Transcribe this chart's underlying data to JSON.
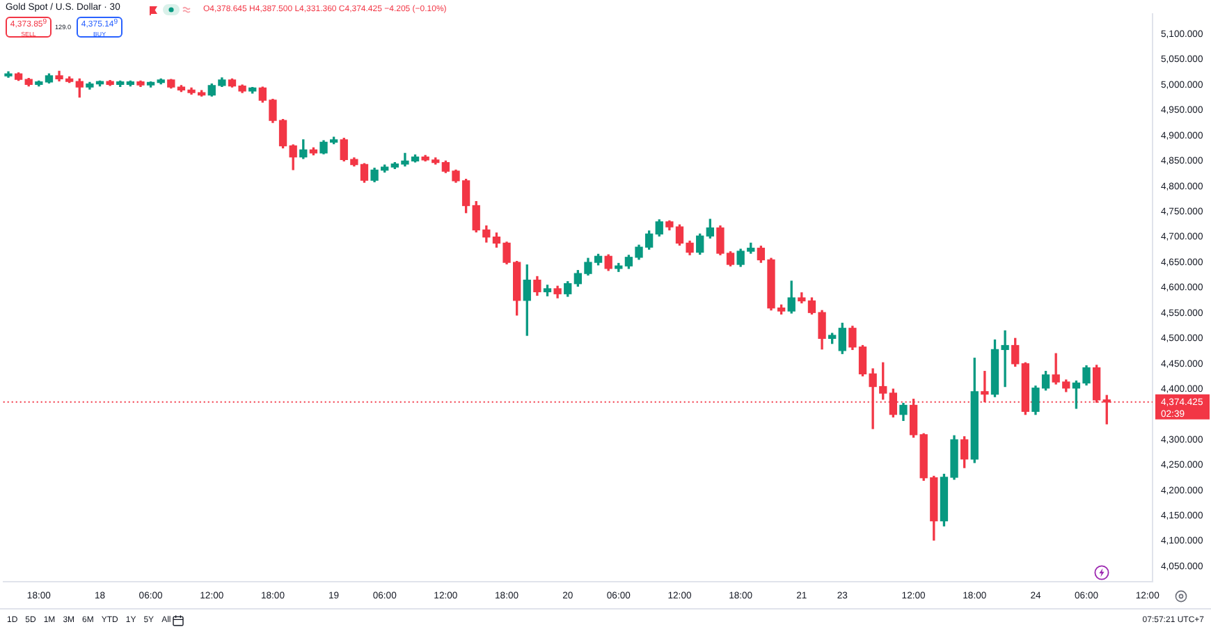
{
  "chart_data": {
    "type": "candlestick",
    "title": "Gold Spot / U.S. Dollar · 30",
    "categories": [
      null,
      null,
      null,
      "18:00",
      null,
      null,
      null,
      null,
      null,
      "18",
      null,
      null,
      null,
      null,
      "06:00",
      null,
      null,
      null,
      null,
      null,
      "12:00",
      null,
      null,
      null,
      null,
      null,
      "18:00",
      null,
      null,
      null,
      null,
      null,
      "19",
      null,
      null,
      null,
      null,
      "06:00",
      null,
      null,
      null,
      null,
      null,
      "12:00",
      null,
      null,
      null,
      null,
      null,
      "18:00",
      null,
      null,
      null,
      null,
      null,
      "20",
      null,
      null,
      null,
      null,
      "06:00",
      null,
      null,
      null,
      null,
      null,
      "12:00",
      null,
      null,
      null,
      null,
      null,
      "18:00",
      null,
      null,
      null,
      null,
      null,
      "21",
      null,
      null,
      null,
      "23",
      null,
      null,
      null,
      null,
      null,
      null,
      "12:00",
      null,
      null,
      null,
      null,
      null,
      "18:00",
      null,
      null,
      null,
      null,
      null,
      "24",
      null,
      null,
      null,
      null,
      "06:00",
      null,
      null,
      null,
      null,
      null,
      "12:00"
    ],
    "ohlc": [
      [
        5018,
        5026,
        5015,
        5022
      ],
      [
        5022,
        5024,
        5009,
        5011
      ],
      [
        5011,
        5013,
        4998,
        5001
      ],
      [
        5001,
        5008,
        4998,
        5006
      ],
      [
        5006,
        5022,
        5004,
        5018
      ],
      [
        5018,
        5027,
        5008,
        5012
      ],
      [
        5012,
        5016,
        5005,
        5007
      ],
      [
        5007,
        5012,
        4976,
        4996
      ],
      [
        4996,
        5005,
        4992,
        5002
      ],
      [
        5002,
        5008,
        4998,
        5007
      ],
      [
        5007,
        5009,
        4999,
        5001
      ],
      [
        5001,
        5008,
        4997,
        5006
      ],
      [
        5001,
        5008,
        4998,
        5006
      ],
      [
        5006,
        5008,
        4997,
        5000
      ],
      [
        5000,
        5006,
        4996,
        5005
      ],
      [
        5005,
        5012,
        5002,
        5010
      ],
      [
        5010,
        5011,
        4994,
        4996
      ],
      [
        4996,
        4999,
        4987,
        4990
      ],
      [
        4990,
        4994,
        4982,
        4985
      ],
      [
        4985,
        4989,
        4978,
        4980
      ],
      [
        4980,
        5002,
        4978,
        4999
      ],
      [
        4999,
        5014,
        4997,
        5010
      ],
      [
        5010,
        5012,
        4996,
        4998
      ],
      [
        4998,
        5000,
        4985,
        4988
      ],
      [
        4988,
        4995,
        4984,
        4994
      ],
      [
        4994,
        4996,
        4966,
        4970
      ],
      [
        4970,
        4972,
        4926,
        4930
      ],
      [
        4930,
        4932,
        4876,
        4880
      ],
      [
        4880,
        4882,
        4833,
        4858
      ],
      [
        4858,
        4892,
        4855,
        4872
      ],
      [
        4872,
        4876,
        4862,
        4866
      ],
      [
        4866,
        4890,
        4864,
        4887
      ],
      [
        4887,
        4897,
        4884,
        4892
      ],
      [
        4892,
        4895,
        4850,
        4853
      ],
      [
        4853,
        4856,
        4840,
        4843
      ],
      [
        4843,
        4845,
        4808,
        4812
      ],
      [
        4812,
        4836,
        4809,
        4832
      ],
      [
        4832,
        4842,
        4828,
        4838
      ],
      [
        4838,
        4847,
        4835,
        4844
      ],
      [
        4844,
        4865,
        4840,
        4850
      ],
      [
        4850,
        4862,
        4848,
        4858
      ],
      [
        4858,
        4861,
        4850,
        4852
      ],
      [
        4852,
        4856,
        4844,
        4847
      ],
      [
        4847,
        4850,
        4827,
        4830
      ],
      [
        4830,
        4832,
        4808,
        4811
      ],
      [
        4811,
        4814,
        4748,
        4762
      ],
      [
        4762,
        4770,
        4710,
        4714
      ],
      [
        4714,
        4722,
        4690,
        4700
      ],
      [
        4700,
        4708,
        4680,
        4688
      ],
      [
        4688,
        4690,
        4647,
        4650
      ],
      [
        4650,
        4652,
        4546,
        4575
      ],
      [
        4575,
        4645,
        4506,
        4615
      ],
      [
        4615,
        4622,
        4585,
        4592
      ],
      [
        4592,
        4605,
        4584,
        4598
      ],
      [
        4598,
        4603,
        4580,
        4588
      ],
      [
        4588,
        4612,
        4583,
        4608
      ],
      [
        4608,
        4634,
        4603,
        4628
      ],
      [
        4628,
        4658,
        4625,
        4650
      ],
      [
        4650,
        4666,
        4645,
        4662
      ],
      [
        4662,
        4665,
        4634,
        4638
      ],
      [
        4638,
        4648,
        4632,
        4643
      ],
      [
        4643,
        4664,
        4638,
        4660
      ],
      [
        4660,
        4684,
        4656,
        4680
      ],
      [
        4680,
        4712,
        4676,
        4706
      ],
      [
        4706,
        4734,
        4702,
        4730
      ],
      [
        4730,
        4732,
        4714,
        4720
      ],
      [
        4720,
        4724,
        4684,
        4688
      ],
      [
        4688,
        4692,
        4665,
        4670
      ],
      [
        4670,
        4706,
        4666,
        4702
      ],
      [
        4702,
        4735,
        4698,
        4718
      ],
      [
        4718,
        4722,
        4665,
        4668
      ],
      [
        4668,
        4671,
        4643,
        4646
      ],
      [
        4646,
        4676,
        4642,
        4672
      ],
      [
        4672,
        4688,
        4668,
        4678
      ],
      [
        4678,
        4682,
        4650,
        4655
      ],
      [
        4655,
        4658,
        4556,
        4560
      ],
      [
        4560,
        4566,
        4548,
        4554
      ],
      [
        4554,
        4613,
        4550,
        4580
      ],
      [
        4580,
        4590,
        4570,
        4574
      ],
      [
        4574,
        4580,
        4548,
        4551
      ],
      [
        4551,
        4555,
        4479,
        4500
      ],
      [
        4500,
        4510,
        4490,
        4506
      ],
      [
        4476,
        4530,
        4470,
        4520
      ],
      [
        4520,
        4524,
        4478,
        4483
      ],
      [
        4483,
        4486,
        4426,
        4430
      ],
      [
        4430,
        4440,
        4322,
        4405
      ],
      [
        4405,
        4452,
        4380,
        4392
      ],
      [
        4392,
        4400,
        4345,
        4350
      ],
      [
        4350,
        4372,
        4338,
        4368
      ],
      [
        4368,
        4380,
        4305,
        4310
      ],
      [
        4310,
        4312,
        4220,
        4225
      ],
      [
        4225,
        4228,
        4102,
        4140
      ],
      [
        4140,
        4232,
        4130,
        4226
      ],
      [
        4226,
        4308,
        4222,
        4300
      ],
      [
        4300,
        4306,
        4245,
        4262
      ],
      [
        4262,
        4461,
        4255,
        4395
      ],
      [
        4395,
        4435,
        4375,
        4390
      ],
      [
        4390,
        4497,
        4385,
        4478
      ],
      [
        4478,
        4515,
        4405,
        4486
      ],
      [
        4486,
        4500,
        4445,
        4450
      ],
      [
        4450,
        4452,
        4350,
        4356
      ],
      [
        4356,
        4406,
        4350,
        4402
      ],
      [
        4402,
        4435,
        4398,
        4428
      ],
      [
        4428,
        4470,
        4410,
        4414
      ],
      [
        4414,
        4418,
        4395,
        4402
      ],
      [
        4402,
        4416,
        4362,
        4412
      ],
      [
        4412,
        4446,
        4408,
        4442
      ],
      [
        4442,
        4447,
        4374,
        4378.645
      ],
      [
        4378.645,
        4387.5,
        4331.36,
        4374.425
      ],
      null,
      null,
      null,
      null
    ],
    "colors": [
      "#089981",
      "#f23645",
      "#f23645",
      "#089981",
      "#089981",
      "#f23645",
      "#f23645",
      "#f23645",
      "#089981",
      "#089981",
      "#f23645",
      "#089981",
      "#089981",
      "#f23645",
      "#089981",
      "#089981",
      "#f23645",
      "#f23645",
      "#f23645",
      "#f23645",
      "#089981",
      "#089981",
      "#f23645",
      "#f23645",
      "#089981",
      "#f23645",
      "#f23645",
      "#f23645",
      "#f23645",
      "#089981",
      "#f23645",
      "#089981",
      "#089981",
      "#f23645",
      "#f23645",
      "#f23645",
      "#089981",
      "#089981",
      "#089981",
      "#089981",
      "#089981",
      "#f23645",
      "#f23645",
      "#f23645",
      "#f23645",
      "#f23645",
      "#f23645",
      "#f23645",
      "#f23645",
      "#f23645",
      "#f23645",
      "#089981",
      "#f23645",
      "#089981",
      "#f23645",
      "#089981",
      "#089981",
      "#089981",
      "#089981",
      "#f23645",
      "#089981",
      "#089981",
      "#089981",
      "#089981",
      "#089981",
      "#f23645",
      "#f23645",
      "#f23645",
      "#089981",
      "#089981",
      "#f23645",
      "#f23645",
      "#089981",
      "#089981",
      "#f23645",
      "#f23645",
      "#f23645",
      "#089981",
      "#f23645",
      "#f23645",
      "#f23645",
      "#089981",
      "#089981",
      "#f23645",
      "#f23645",
      "#f23645",
      "#f23645",
      "#f23645",
      "#089981",
      "#f23645",
      "#f23645",
      "#f23645",
      "#089981",
      "#089981",
      "#f23645",
      "#089981",
      "#f23645",
      "#089981",
      "#089981",
      "#f23645",
      "#f23645",
      "#089981",
      "#089981",
      "#f23645",
      "#f23645",
      "#089981",
      "#089981",
      "#f23645",
      "#f23645",
      null,
      null,
      null,
      null
    ],
    "ylim": [
      4020,
      5140
    ],
    "yticks": [
      {
        "value": 4050,
        "label": "4,050.000"
      },
      {
        "value": 4100,
        "label": "4,100.000"
      },
      {
        "value": 4150,
        "label": "4,150.000"
      },
      {
        "value": 4200,
        "label": "4,200.000"
      },
      {
        "value": 4250,
        "label": "4,250.000"
      },
      {
        "value": 4300,
        "label": "4,300.000"
      },
      {
        "value": 4400,
        "label": "4,400.000"
      },
      {
        "value": 4450,
        "label": "4,450.000"
      },
      {
        "value": 4500,
        "label": "4,500.000"
      },
      {
        "value": 4550,
        "label": "4,550.000"
      },
      {
        "value": 4600,
        "label": "4,600.000"
      },
      {
        "value": 4650,
        "label": "4,650.000"
      },
      {
        "value": 4700,
        "label": "4,700.000"
      },
      {
        "value": 4750,
        "label": "4,750.000"
      },
      {
        "value": 4800,
        "label": "4,800.000"
      },
      {
        "value": 4850,
        "label": "4,850.000"
      },
      {
        "value": 4900,
        "label": "4,900.000"
      },
      {
        "value": 4950,
        "label": "4,950.000"
      },
      {
        "value": 5000,
        "label": "5,000.000"
      },
      {
        "value": 5050,
        "label": "5,050.000"
      },
      {
        "value": 5100,
        "label": "5,100.000"
      }
    ],
    "ref_lines": [
      {
        "axis": "y",
        "value": 4374.425,
        "label": "4,374.425",
        "color": "#f23645",
        "line_style": "dotted"
      }
    ],
    "annotations": [
      "O4,378.645 H4,387.500 L4,331.360 C4,374.425 −4.205 (−0.10%)",
      "4,373.85$^{9}$",
      "SELL",
      "129.0",
      "4,375.14$^{9}$",
      "BUY",
      "02:39",
      "1D",
      "5D",
      "1M",
      "3M",
      "6M",
      "YTD",
      "1Y",
      "5Y",
      "All",
      "07:57:21 UTC+7"
    ]
  }
}
